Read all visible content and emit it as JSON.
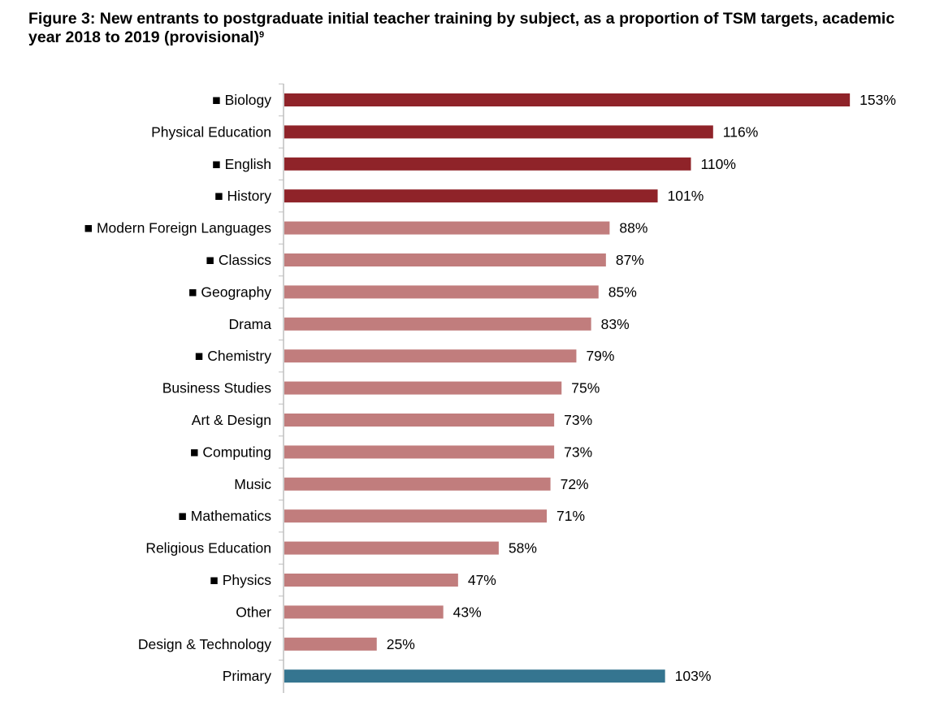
{
  "chart_data": {
    "type": "bar",
    "orientation": "horizontal",
    "title": "Figure 3: New entrants to postgraduate initial teacher training by subject, as a proportion of TSM targets, academic year 2018 to 2019 (provisional)",
    "title_footnote": "9",
    "marker": "■",
    "categories": [
      {
        "label": "Biology",
        "marked": true,
        "value": 153,
        "display": "153%",
        "group": "above_target"
      },
      {
        "label": "Physical Education",
        "marked": false,
        "value": 116,
        "display": "116%",
        "group": "above_target"
      },
      {
        "label": "English",
        "marked": true,
        "value": 110,
        "display": "110%",
        "group": "above_target"
      },
      {
        "label": "History",
        "marked": true,
        "value": 101,
        "display": "101%",
        "group": "above_target"
      },
      {
        "label": "Modern Foreign Languages",
        "marked": true,
        "value": 88,
        "display": "88%",
        "group": "below_target"
      },
      {
        "label": "Classics",
        "marked": true,
        "value": 87,
        "display": "87%",
        "group": "below_target"
      },
      {
        "label": "Geography",
        "marked": true,
        "value": 85,
        "display": "85%",
        "group": "below_target"
      },
      {
        "label": "Drama",
        "marked": false,
        "value": 83,
        "display": "83%",
        "group": "below_target"
      },
      {
        "label": "Chemistry",
        "marked": true,
        "value": 79,
        "display": "79%",
        "group": "below_target"
      },
      {
        "label": "Business Studies",
        "marked": false,
        "value": 75,
        "display": "75%",
        "group": "below_target"
      },
      {
        "label": "Art & Design",
        "marked": false,
        "value": 73,
        "display": "73%",
        "group": "below_target"
      },
      {
        "label": "Computing",
        "marked": true,
        "value": 73,
        "display": "73%",
        "group": "below_target"
      },
      {
        "label": "Music",
        "marked": false,
        "value": 72,
        "display": "72%",
        "group": "below_target"
      },
      {
        "label": "Mathematics",
        "marked": true,
        "value": 71,
        "display": "71%",
        "group": "below_target"
      },
      {
        "label": "Religious Education",
        "marked": false,
        "value": 58,
        "display": "58%",
        "group": "below_target"
      },
      {
        "label": "Physics",
        "marked": true,
        "value": 47,
        "display": "47%",
        "group": "below_target"
      },
      {
        "label": "Other",
        "marked": false,
        "value": 43,
        "display": "43%",
        "group": "below_target"
      },
      {
        "label": "Design & Technology",
        "marked": false,
        "value": 25,
        "display": "25%",
        "group": "below_target"
      },
      {
        "label": "Primary",
        "marked": false,
        "value": 103,
        "display": "103%",
        "group": "primary"
      }
    ],
    "colors": {
      "above_target": "#8f2329",
      "below_target": "#c17d7d",
      "primary": "#357590",
      "axis": "#bfbfbf"
    },
    "xlim": [
      0,
      160
    ],
    "grid": false,
    "x_axis_visible": false
  }
}
